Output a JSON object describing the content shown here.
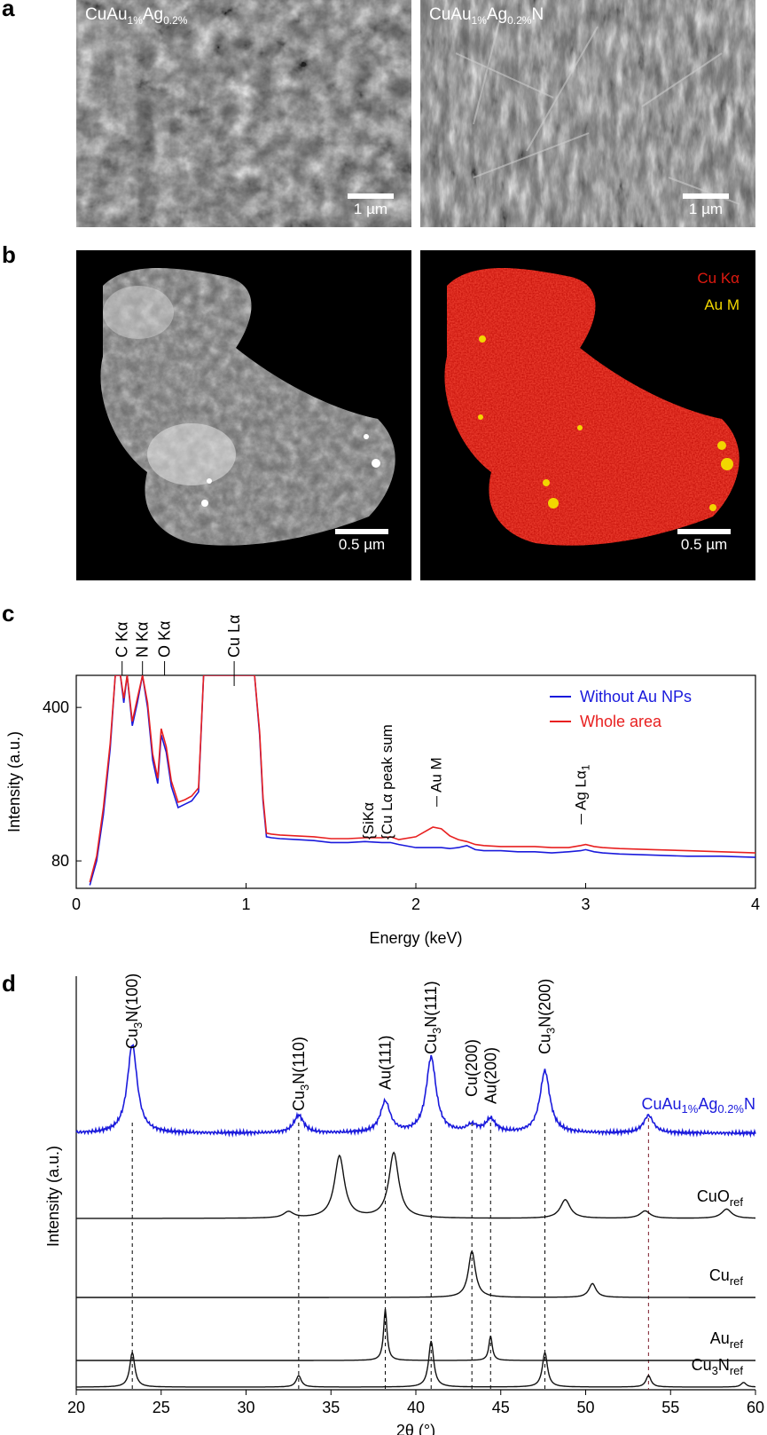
{
  "panel_a": {
    "letter": "a",
    "left": {
      "label_main": "CuAu",
      "label_sub1": "1%",
      "label_mid": "Ag",
      "label_sub2": "0.2%",
      "label_end": "",
      "scale": "1 µm"
    },
    "right": {
      "label_main": "CuAu",
      "label_sub1": "1%",
      "label_mid": "Ag",
      "label_sub2": "0.2%",
      "label_end": "N",
      "scale": "1 µm"
    }
  },
  "panel_b": {
    "letter": "b",
    "left": {
      "scale": "0.5 µm"
    },
    "right": {
      "scale": "0.5 µm",
      "legend_cu": "Cu Kα",
      "legend_au": "Au M",
      "color_cu": "#e01a10",
      "color_au": "#f2d600"
    }
  },
  "panel_c": {
    "letter": "c",
    "chart_data": {
      "type": "line",
      "xlabel": "Energy (keV)",
      "ylabel": "Intensity (a.u.)",
      "xlim": [
        0,
        4
      ],
      "y_scale": "log",
      "ylim": [
        60,
        560
      ],
      "xticks": [
        "0",
        "1",
        "2",
        "3",
        "4"
      ],
      "yticks": [
        "80",
        "400"
      ],
      "top_labels": [
        "C Kα",
        "N Kα",
        "O Kα",
        "Cu Lα"
      ],
      "annotations": [
        "{SiKα",
        "{Cu Lα peak sum",
        "Au M",
        "Ag Lα1"
      ],
      "series": [
        {
          "name": "Without Au NPs",
          "color": "#1a1adc",
          "x": [
            0.08,
            0.12,
            0.16,
            0.2,
            0.23,
            0.26,
            0.28,
            0.3,
            0.33,
            0.36,
            0.39,
            0.42,
            0.45,
            0.48,
            0.5,
            0.53,
            0.56,
            0.6,
            0.64,
            0.68,
            0.72,
            0.75,
            0.8,
            0.85,
            0.9,
            1.0,
            1.05,
            1.08,
            1.1,
            1.12,
            1.15,
            1.2,
            1.3,
            1.4,
            1.5,
            1.6,
            1.7,
            1.8,
            1.85,
            1.9,
            2.0,
            2.1,
            2.15,
            2.2,
            2.25,
            2.3,
            2.35,
            2.4,
            2.5,
            2.6,
            2.7,
            2.8,
            2.9,
            2.97,
            3.0,
            3.05,
            3.1,
            3.2,
            3.4,
            3.6,
            3.8,
            4.0
          ],
          "y": [
            62,
            80,
            130,
            260,
            560,
            560,
            420,
            560,
            330,
            420,
            560,
            400,
            230,
            180,
            300,
            250,
            175,
            140,
            145,
            150,
            165,
            560,
            560,
            560,
            560,
            560,
            560,
            300,
            150,
            103,
            102,
            101,
            100,
            99,
            97,
            97,
            98,
            97,
            97,
            95,
            92,
            92,
            92,
            91,
            92,
            94,
            90,
            89,
            89,
            88,
            88,
            87,
            88,
            89,
            90,
            88,
            87,
            86,
            85,
            84,
            84,
            83
          ]
        },
        {
          "name": "Whole area",
          "color": "#e82020",
          "x": [
            0.08,
            0.12,
            0.16,
            0.2,
            0.23,
            0.26,
            0.28,
            0.3,
            0.33,
            0.36,
            0.39,
            0.42,
            0.45,
            0.48,
            0.5,
            0.53,
            0.56,
            0.6,
            0.64,
            0.68,
            0.72,
            0.75,
            0.8,
            0.85,
            0.9,
            1.0,
            1.05,
            1.08,
            1.1,
            1.12,
            1.15,
            1.2,
            1.3,
            1.4,
            1.5,
            1.6,
            1.7,
            1.8,
            1.85,
            1.9,
            2.0,
            2.1,
            2.15,
            2.2,
            2.25,
            2.3,
            2.35,
            2.4,
            2.5,
            2.6,
            2.7,
            2.8,
            2.9,
            2.97,
            3.0,
            3.05,
            3.1,
            3.2,
            3.4,
            3.6,
            3.8,
            4.0
          ],
          "y": [
            64,
            84,
            140,
            275,
            560,
            560,
            440,
            560,
            345,
            440,
            560,
            420,
            245,
            190,
            320,
            265,
            185,
            148,
            152,
            158,
            172,
            560,
            560,
            560,
            560,
            560,
            560,
            310,
            156,
            107,
            106,
            105,
            104,
            103,
            101,
            101,
            102,
            102,
            103,
            100,
            103,
            114,
            112,
            104,
            100,
            98,
            95,
            94,
            93,
            93,
            93,
            92,
            92,
            94,
            95,
            93,
            92,
            91,
            90,
            89,
            88,
            87
          ]
        }
      ]
    }
  },
  "panel_d": {
    "letter": "d",
    "chart_data": {
      "type": "line",
      "xlabel": "2θ (°)",
      "ylabel": "Intensity (a.u.)",
      "xlim": [
        20,
        60
      ],
      "xticks": [
        "20",
        "25",
        "30",
        "35",
        "40",
        "45",
        "50",
        "55",
        "60"
      ],
      "peak_labels": [
        {
          "main": "Cu",
          "sub": "3",
          "rest": "N(100)",
          "x": 23.3
        },
        {
          "main": "Cu",
          "sub": "3",
          "rest": "N(110)",
          "x": 33.1
        },
        {
          "main": "Au(111)",
          "sub": "",
          "rest": "",
          "x": 38.2
        },
        {
          "main": "Cu",
          "sub": "3",
          "rest": "N(111)",
          "x": 40.9
        },
        {
          "main": "Cu(200)",
          "sub": "",
          "rest": "",
          "x": 43.3
        },
        {
          "main": "Au(200)",
          "sub": "",
          "rest": "",
          "x": 44.4
        },
        {
          "main": "Cu",
          "sub": "3",
          "rest": "N(200)",
          "x": 47.6
        }
      ],
      "dashed_lines_x": [
        23.3,
        33.1,
        38.2,
        40.9,
        43.3,
        44.4,
        47.6,
        53.7
      ],
      "series": [
        {
          "name_main": "CuAu",
          "name_sub1": "1%",
          "name_mid": "Ag",
          "name_sub2": "0.2%",
          "name_end": "N",
          "color": "#1a1adc",
          "peaks": [
            [
              23.3,
              1.0
            ],
            [
              33.1,
              0.2
            ],
            [
              38.2,
              0.35
            ],
            [
              40.9,
              0.85
            ],
            [
              43.3,
              0.08
            ],
            [
              44.4,
              0.15
            ],
            [
              47.6,
              0.7
            ],
            [
              53.7,
              0.2
            ]
          ]
        },
        {
          "name_main": "CuO",
          "name_sub": "ref",
          "color": "#111111",
          "peaks": [
            [
              32.5,
              0.1
            ],
            [
              35.5,
              1.0
            ],
            [
              38.7,
              1.05
            ],
            [
              48.8,
              0.3
            ],
            [
              53.5,
              0.12
            ],
            [
              58.3,
              0.15
            ]
          ]
        },
        {
          "name_main": "Cu",
          "name_sub": "ref",
          "color": "#111111",
          "peaks": [
            [
              43.3,
              1.0
            ],
            [
              50.4,
              0.3
            ]
          ]
        },
        {
          "name_main": "Au",
          "name_sub": "ref",
          "color": "#111111",
          "peaks": [
            [
              38.2,
              1.0
            ],
            [
              44.4,
              0.48
            ]
          ]
        },
        {
          "name_main": "Cu",
          "name_mid_sub": "3",
          "name_after": "N",
          "name_sub": "ref",
          "color": "#111111",
          "peaks": [
            [
              23.3,
              0.75
            ],
            [
              33.1,
              0.25
            ],
            [
              40.9,
              1.0
            ],
            [
              47.6,
              0.75
            ],
            [
              53.7,
              0.25
            ],
            [
              59.3,
              0.1
            ]
          ]
        }
      ]
    }
  }
}
